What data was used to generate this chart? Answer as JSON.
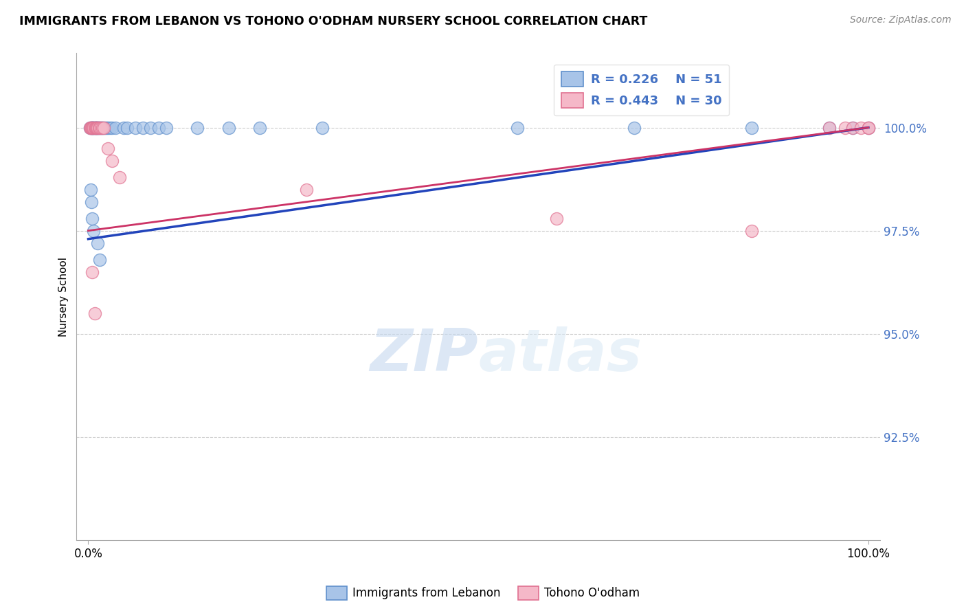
{
  "title": "IMMIGRANTS FROM LEBANON VS TOHONO O'ODHAM NURSERY SCHOOL CORRELATION CHART",
  "source": "Source: ZipAtlas.com",
  "ylabel": "Nursery School",
  "ylim": [
    90.0,
    101.8
  ],
  "xlim": [
    -1.5,
    101.5
  ],
  "yticks": [
    92.5,
    95.0,
    97.5,
    100.0
  ],
  "ytick_labels": [
    "92.5%",
    "95.0%",
    "97.5%",
    "100.0%"
  ],
  "blue_color": "#A8C4E8",
  "pink_color": "#F5B8C8",
  "blue_edge": "#6090CC",
  "pink_edge": "#E07090",
  "trend_blue": "#2244BB",
  "trend_pink": "#CC3366",
  "blue_trend_start_y": 97.3,
  "blue_trend_end_y": 100.0,
  "pink_trend_start_y": 97.5,
  "pink_trend_end_y": 100.0,
  "legend_line1": "R = 0.226    N = 51",
  "legend_line2": "R = 0.443    N = 30",
  "blue_x": [
    0.2,
    0.3,
    0.4,
    0.5,
    0.5,
    0.6,
    0.6,
    0.7,
    0.8,
    0.8,
    0.9,
    1.0,
    1.0,
    1.1,
    1.2,
    1.3,
    1.4,
    1.5,
    1.6,
    1.7,
    1.8,
    2.0,
    2.2,
    2.3,
    2.5,
    2.8,
    3.0,
    3.5,
    4.5,
    5.0,
    6.0,
    7.0,
    8.0,
    9.0,
    10.0,
    14.0,
    18.0,
    22.0,
    30.0,
    55.0,
    70.0,
    85.0,
    95.0,
    98.0,
    100.0,
    0.3,
    0.4,
    0.5,
    0.7,
    1.2,
    1.5
  ],
  "blue_y": [
    100.0,
    100.0,
    100.0,
    100.0,
    100.0,
    100.0,
    100.0,
    100.0,
    100.0,
    100.0,
    100.0,
    100.0,
    100.0,
    100.0,
    100.0,
    100.0,
    100.0,
    100.0,
    100.0,
    100.0,
    100.0,
    100.0,
    100.0,
    100.0,
    100.0,
    100.0,
    100.0,
    100.0,
    100.0,
    100.0,
    100.0,
    100.0,
    100.0,
    100.0,
    100.0,
    100.0,
    100.0,
    100.0,
    100.0,
    100.0,
    100.0,
    100.0,
    100.0,
    100.0,
    100.0,
    98.5,
    98.2,
    97.8,
    97.5,
    97.2,
    96.8
  ],
  "pink_x": [
    0.2,
    0.3,
    0.4,
    0.5,
    0.6,
    0.7,
    0.8,
    0.9,
    1.0,
    1.1,
    1.2,
    1.4,
    1.5,
    1.6,
    1.8,
    2.0,
    2.5,
    3.0,
    4.0,
    28.0,
    60.0,
    85.0,
    95.0,
    97.0,
    98.0,
    99.0,
    100.0,
    100.0,
    0.5,
    0.8
  ],
  "pink_y": [
    100.0,
    100.0,
    100.0,
    100.0,
    100.0,
    100.0,
    100.0,
    100.0,
    100.0,
    100.0,
    100.0,
    100.0,
    100.0,
    100.0,
    100.0,
    100.0,
    99.5,
    99.2,
    98.8,
    98.5,
    97.8,
    97.5,
    100.0,
    100.0,
    100.0,
    100.0,
    100.0,
    100.0,
    96.5,
    95.5
  ],
  "watermark_zip": "ZIP",
  "watermark_atlas": "atlas",
  "background_color": "#ffffff",
  "grid_color": "#cccccc",
  "marker_size": 170
}
